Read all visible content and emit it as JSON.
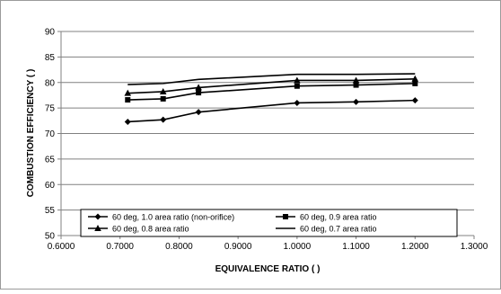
{
  "chart_data": {
    "type": "line",
    "title": "",
    "xlabel": "EQUIVALENCE RATIO (  )",
    "ylabel": "COMBUSTION EFFICIENCY (  )",
    "xlim": [
      0.6,
      1.3
    ],
    "ylim": [
      50,
      90
    ],
    "x_ticks": [
      0.6,
      0.7,
      0.8,
      0.9,
      1.0,
      1.1,
      1.2,
      1.3
    ],
    "x_tick_labels": [
      "0.6000",
      "0.7000",
      "0.8000",
      "0.9000",
      "1.0000",
      "1.1000",
      "1.2000",
      "1.3000"
    ],
    "y_ticks": [
      50,
      55,
      60,
      65,
      70,
      75,
      80,
      85,
      90
    ],
    "y_tick_labels": [
      "50",
      "55",
      "60",
      "65",
      "70",
      "75",
      "80",
      "85",
      "90"
    ],
    "grid": "horizontal",
    "legend_position": "bottom",
    "series": [
      {
        "name": "60 deg, 1.0 area ratio (non-orifice)",
        "marker": "diamond",
        "x": [
          0.713,
          0.773,
          0.833,
          1.0,
          1.1,
          1.2
        ],
        "y": [
          72.3,
          72.7,
          74.2,
          76.0,
          76.2,
          76.5
        ]
      },
      {
        "name": "60 deg, 0.9 area ratio",
        "marker": "square",
        "x": [
          0.713,
          0.773,
          0.833,
          1.0,
          1.1,
          1.2
        ],
        "y": [
          76.6,
          76.8,
          78.0,
          79.3,
          79.5,
          79.8
        ]
      },
      {
        "name": "60 deg, 0.8 area ratio",
        "marker": "triangle",
        "x": [
          0.713,
          0.773,
          0.833,
          1.0,
          1.1,
          1.2
        ],
        "y": [
          77.9,
          78.2,
          79.0,
          80.4,
          80.4,
          80.7
        ]
      },
      {
        "name": "60 deg, 0.7 area ratio",
        "marker": "none",
        "x": [
          0.713,
          0.773,
          0.833,
          1.0,
          1.1,
          1.2
        ],
        "y": [
          79.6,
          79.8,
          80.6,
          81.6,
          81.6,
          81.7
        ]
      }
    ]
  }
}
